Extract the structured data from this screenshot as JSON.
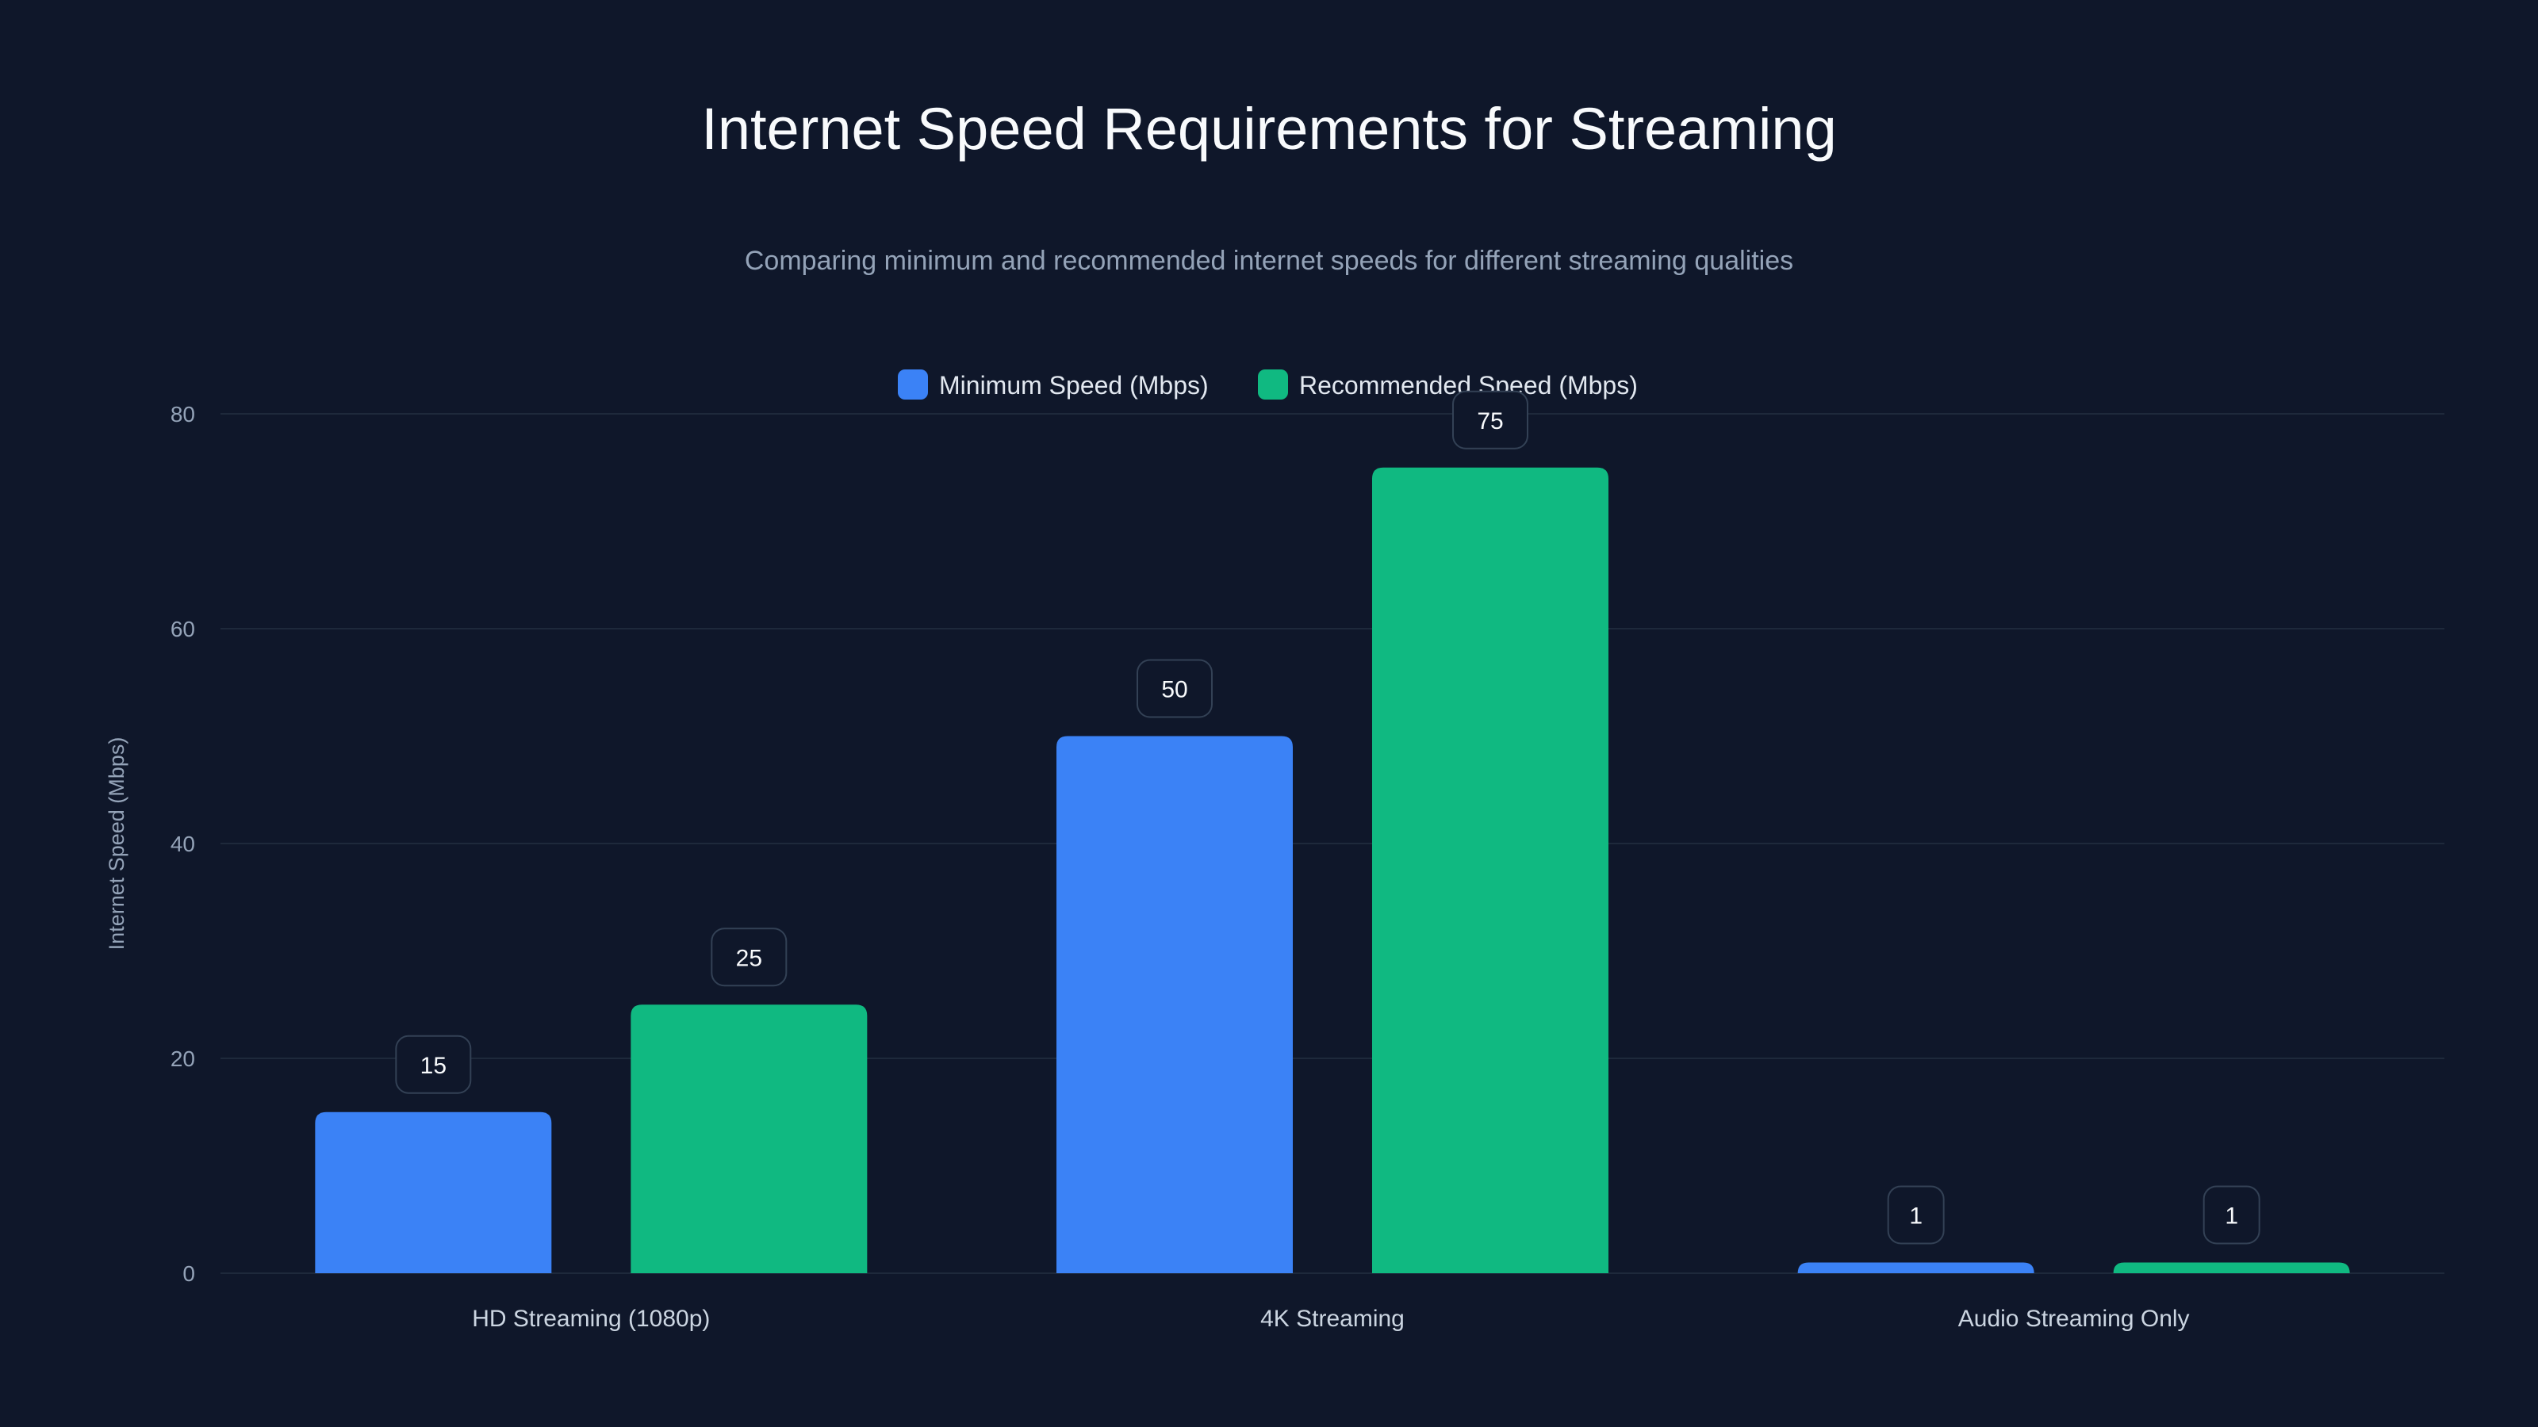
{
  "chart_data": {
    "type": "bar",
    "title": "Internet Speed Requirements for Streaming",
    "subtitle": "Comparing minimum and recommended internet speeds for different streaming qualities",
    "xlabel": "",
    "ylabel": "Internet Speed (Mbps)",
    "ylim": [
      0,
      80
    ],
    "yticks": [
      "0",
      "20",
      "40",
      "60",
      "80"
    ],
    "grid": true,
    "legend_position": "top-center",
    "categories": [
      "HD Streaming (1080p)",
      "4K Streaming",
      "Audio Streaming Only"
    ],
    "series": [
      {
        "name": "Minimum Speed (Mbps)",
        "color": "#3b82f6",
        "values": [
          15,
          50,
          1
        ]
      },
      {
        "name": "Recommended Speed (Mbps)",
        "color": "#10b981",
        "values": [
          25,
          75,
          1
        ]
      }
    ]
  }
}
